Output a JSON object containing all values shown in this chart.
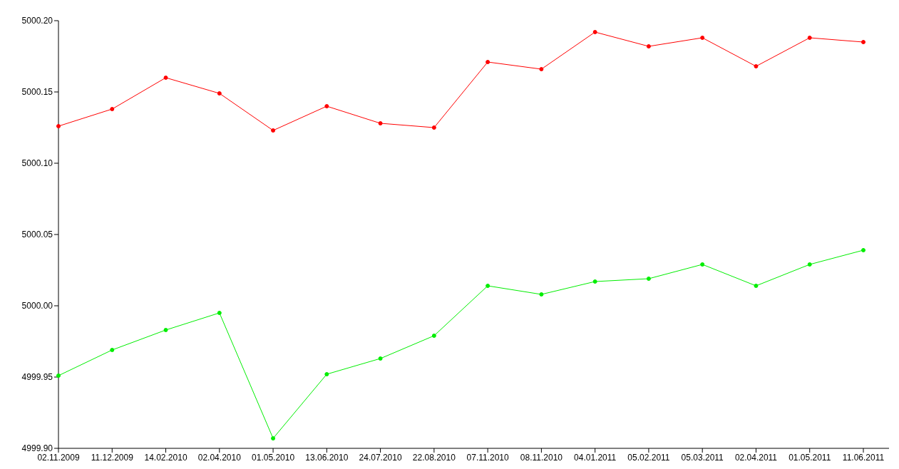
{
  "chart_data": {
    "type": "line",
    "categories": [
      "02.11.2009",
      "11.12.2009",
      "14.02.2010",
      "02.04.2010",
      "01.05.2010",
      "13.06.2010",
      "24.07.2010",
      "22.08.2010",
      "07.11.2010",
      "08.11.2010",
      "04.01.2011",
      "05.02.2011",
      "05.03.2011",
      "02.04.2011",
      "01.05.2011",
      "11.06.2011"
    ],
    "series": [
      {
        "color": "#ff0000",
        "values": [
          5000.126,
          5000.138,
          5000.16,
          5000.149,
          5000.123,
          5000.14,
          5000.128,
          5000.125,
          5000.171,
          5000.166,
          5000.192,
          5000.182,
          5000.188,
          5000.168,
          5000.188,
          5000.185
        ]
      },
      {
        "color": "#00ee00",
        "values": [
          4999.951,
          4999.969,
          4999.983,
          4999.995,
          4999.907,
          4999.952,
          4999.963,
          4999.979,
          5000.014,
          5000.008,
          5000.017,
          5000.019,
          5000.029,
          5000.014,
          5000.029,
          5000.039
        ]
      }
    ],
    "ylim": [
      4999.9,
      5000.2
    ],
    "yticks": [
      {
        "value": 4999.9,
        "label": "4999.90"
      },
      {
        "value": 4999.95,
        "label": "4999.95"
      },
      {
        "value": 5000.0,
        "label": "5000.00"
      },
      {
        "value": 5000.05,
        "label": "5000.05"
      },
      {
        "value": 5000.1,
        "label": "5000.10"
      },
      {
        "value": 5000.15,
        "label": "5000.15"
      },
      {
        "value": 5000.2,
        "label": "5000.20"
      }
    ],
    "grid": false,
    "legend": false,
    "marker": "circle",
    "line_style": "solid"
  }
}
